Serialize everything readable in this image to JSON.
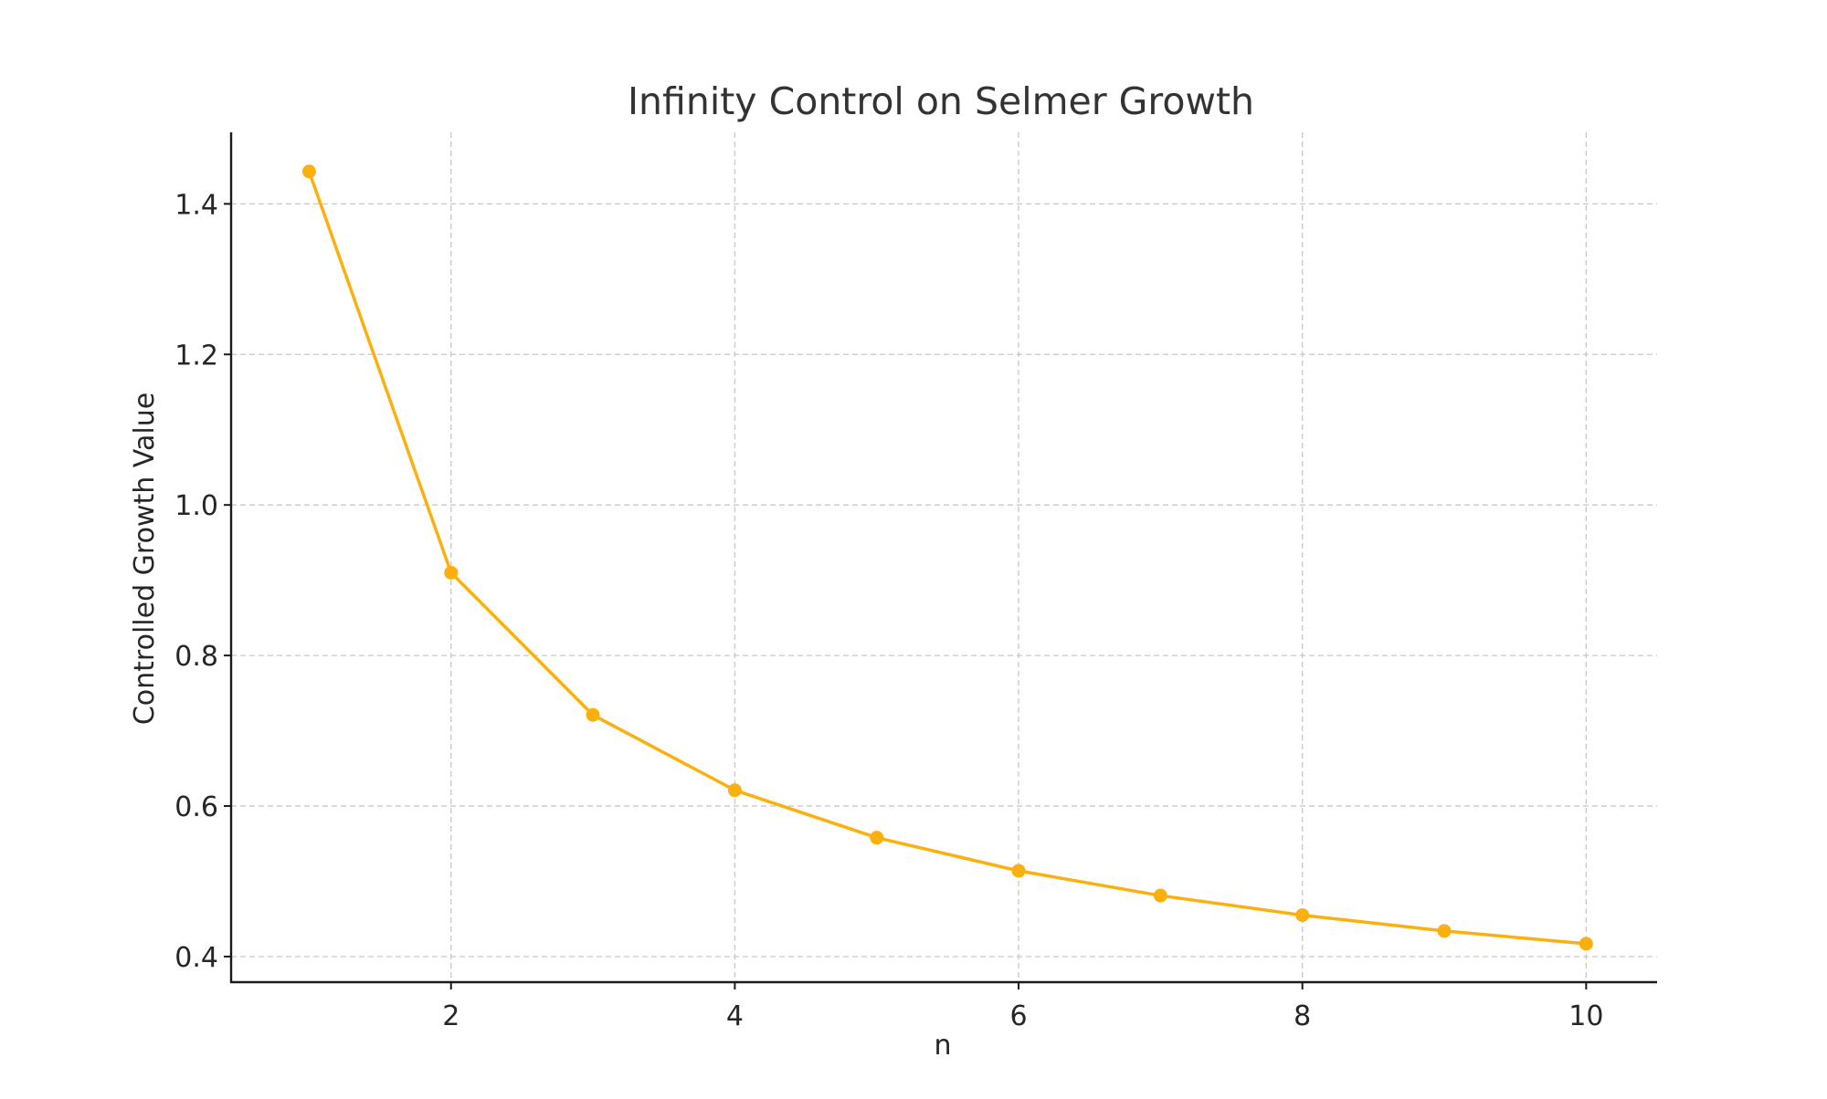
{
  "chart_data": {
    "type": "line",
    "title": "Infinity Control on Selmer Growth",
    "xlabel": "n",
    "ylabel": "Controlled Growth Value",
    "x": [
      1,
      2,
      3,
      4,
      5,
      6,
      7,
      8,
      9,
      10
    ],
    "series": [
      {
        "values": [
          1.443,
          0.91,
          0.721,
          0.621,
          0.558,
          0.514,
          0.481,
          0.455,
          0.434,
          0.417
        ],
        "color": "#fbb00f",
        "marker": "circle"
      }
    ],
    "xlim": [
      0.45,
      10.5
    ],
    "ylim": [
      0.366,
      1.495
    ],
    "xticks": [
      2,
      4,
      6,
      8,
      10
    ],
    "xtick_labels": [
      "2",
      "4",
      "6",
      "8",
      "10"
    ],
    "yticks": [
      0.4,
      0.6,
      0.8,
      1.0,
      1.2,
      1.4
    ],
    "ytick_labels": [
      "0.4",
      "0.6",
      "0.8",
      "1.0",
      "1.2",
      "1.4"
    ],
    "grid": true,
    "legend": false
  }
}
